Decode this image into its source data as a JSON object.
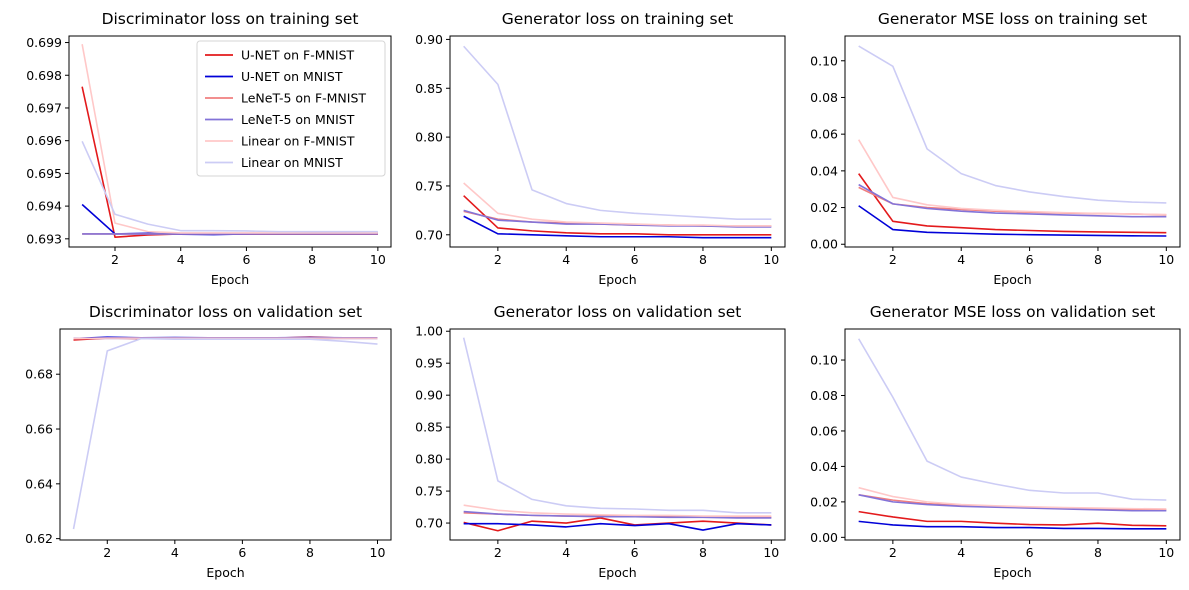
{
  "chart_data": [
    {
      "type": "line",
      "title": "Discriminator loss on training set",
      "xlabel": "Epoch",
      "ylabel": "",
      "xlim": [
        0.6,
        10.4
      ],
      "ylim": [
        0.69275,
        0.6992
      ],
      "xticks": [
        2,
        4,
        6,
        8,
        10
      ],
      "yticks": [
        0.693,
        0.694,
        0.695,
        0.696,
        0.697,
        0.698,
        0.699
      ],
      "yfmt": 3,
      "legend": "top-right",
      "x": [
        1,
        2,
        3,
        4,
        5,
        6,
        7,
        8,
        9,
        10
      ],
      "series": [
        {
          "name": "U-NET on F-MNIST",
          "color": "#e31a1c",
          "values": [
            0.69765,
            0.69305,
            0.69312,
            0.69315,
            0.69314,
            0.69314,
            0.69314,
            0.69314,
            0.69314,
            0.69314
          ]
        },
        {
          "name": "U-NET on MNIST",
          "color": "#0000d8",
          "values": [
            0.69405,
            0.69315,
            0.69317,
            0.69314,
            0.69313,
            0.69315,
            0.69316,
            0.69318,
            0.69318,
            0.69317
          ]
        },
        {
          "name": "LeNeT-5 on F-MNIST",
          "color": "#f07f7f",
          "values": [
            0.69315,
            0.69315,
            0.69315,
            0.69315,
            0.69315,
            0.69315,
            0.69315,
            0.69315,
            0.69315,
            0.69315
          ]
        },
        {
          "name": "LeNeT-5 on MNIST",
          "color": "#8373d8",
          "values": [
            0.69315,
            0.69315,
            0.69315,
            0.69315,
            0.69315,
            0.69315,
            0.69315,
            0.69315,
            0.69315,
            0.69315
          ]
        },
        {
          "name": "Linear on F-MNIST",
          "color": "#ffc8c8",
          "values": [
            0.69895,
            0.69348,
            0.69322,
            0.69318,
            0.69318,
            0.69318,
            0.69318,
            0.69318,
            0.69318,
            0.69318
          ]
        },
        {
          "name": "Linear on MNIST",
          "color": "#ccccf5",
          "values": [
            0.69598,
            0.69375,
            0.69345,
            0.69325,
            0.69325,
            0.69324,
            0.69322,
            0.69322,
            0.69322,
            0.69322
          ]
        }
      ]
    },
    {
      "type": "line",
      "title": "Generator loss on training set",
      "xlabel": "Epoch",
      "ylabel": "",
      "xlim": [
        0.6,
        10.4
      ],
      "ylim": [
        0.6875,
        0.9035
      ],
      "xticks": [
        2,
        4,
        6,
        8,
        10
      ],
      "yticks": [
        0.7,
        0.75,
        0.8,
        0.85,
        0.9
      ],
      "yfmt": 2,
      "x": [
        1,
        2,
        3,
        4,
        5,
        6,
        7,
        8,
        9,
        10
      ],
      "series": [
        {
          "name": "U-NET on F-MNIST",
          "color": "#e31a1c",
          "values": [
            0.74,
            0.707,
            0.704,
            0.702,
            0.701,
            0.701,
            0.7,
            0.7,
            0.7,
            0.7
          ]
        },
        {
          "name": "U-NET on MNIST",
          "color": "#0000d8",
          "values": [
            0.719,
            0.701,
            0.7,
            0.699,
            0.698,
            0.698,
            0.698,
            0.697,
            0.697,
            0.697
          ]
        },
        {
          "name": "LeNeT-5 on F-MNIST",
          "color": "#f07f7f",
          "values": [
            0.724,
            0.716,
            0.713,
            0.712,
            0.711,
            0.71,
            0.71,
            0.709,
            0.709,
            0.709
          ]
        },
        {
          "name": "LeNeT-5 on MNIST",
          "color": "#8373d8",
          "values": [
            0.725,
            0.715,
            0.713,
            0.711,
            0.711,
            0.71,
            0.709,
            0.709,
            0.708,
            0.708
          ]
        },
        {
          "name": "Linear on F-MNIST",
          "color": "#ffc8c8",
          "values": [
            0.753,
            0.722,
            0.716,
            0.713,
            0.712,
            0.711,
            0.71,
            0.71,
            0.709,
            0.709
          ]
        },
        {
          "name": "Linear on MNIST",
          "color": "#ccccf5",
          "values": [
            0.893,
            0.854,
            0.746,
            0.732,
            0.725,
            0.722,
            0.72,
            0.718,
            0.716,
            0.716
          ]
        }
      ]
    },
    {
      "type": "line",
      "title": "Generator MSE loss on training set",
      "xlabel": "Epoch",
      "ylabel": "",
      "xlim": [
        0.6,
        10.4
      ],
      "ylim": [
        -0.0015,
        0.1135
      ],
      "xticks": [
        2,
        4,
        6,
        8,
        10
      ],
      "yticks": [
        0.0,
        0.02,
        0.04,
        0.06,
        0.08,
        0.1
      ],
      "yfmt": 2,
      "x": [
        1,
        2,
        3,
        4,
        5,
        6,
        7,
        8,
        9,
        10
      ],
      "series": [
        {
          "name": "U-NET on F-MNIST",
          "color": "#e31a1c",
          "values": [
            0.0385,
            0.0125,
            0.01,
            0.009,
            0.008,
            0.0075,
            0.007,
            0.0067,
            0.0065,
            0.0063
          ]
        },
        {
          "name": "U-NET on MNIST",
          "color": "#0000d8",
          "values": [
            0.021,
            0.008,
            0.0065,
            0.006,
            0.0055,
            0.0052,
            0.005,
            0.0048,
            0.0046,
            0.0045
          ]
        },
        {
          "name": "LeNeT-5 on F-MNIST",
          "color": "#f07f7f",
          "values": [
            0.031,
            0.022,
            0.02,
            0.019,
            0.018,
            0.0175,
            0.017,
            0.0167,
            0.0165,
            0.016
          ]
        },
        {
          "name": "LeNeT-5 on MNIST",
          "color": "#8373d8",
          "values": [
            0.0325,
            0.022,
            0.0195,
            0.018,
            0.017,
            0.0165,
            0.016,
            0.0155,
            0.015,
            0.015
          ]
        },
        {
          "name": "Linear on F-MNIST",
          "color": "#ffc8c8",
          "values": [
            0.057,
            0.0255,
            0.0215,
            0.0195,
            0.0185,
            0.0178,
            0.0172,
            0.0168,
            0.0165,
            0.0162
          ]
        },
        {
          "name": "Linear on MNIST",
          "color": "#ccccf5",
          "values": [
            0.108,
            0.097,
            0.052,
            0.0385,
            0.032,
            0.0285,
            0.026,
            0.024,
            0.023,
            0.0225
          ]
        }
      ]
    },
    {
      "type": "line",
      "title": "Discriminator loss on validation set",
      "xlabel": "Epoch",
      "ylabel": "",
      "xlim": [
        0.6,
        10.4
      ],
      "ylim": [
        0.6195,
        0.6965
      ],
      "xticks": [
        2,
        4,
        6,
        8,
        10
      ],
      "yticks": [
        0.62,
        0.64,
        0.66,
        0.68
      ],
      "yfmt": 2,
      "x": [
        1,
        2,
        3,
        4,
        5,
        6,
        7,
        8,
        9,
        10
      ],
      "series": [
        {
          "name": "U-NET on F-MNIST",
          "color": "#e31a1c",
          "values": [
            0.6925,
            0.6932,
            0.693,
            0.6932,
            0.6931,
            0.6931,
            0.6932,
            0.6935,
            0.6932,
            0.6932
          ]
        },
        {
          "name": "U-NET on MNIST",
          "color": "#0000d8",
          "values": [
            0.693,
            0.6935,
            0.6933,
            0.6934,
            0.6933,
            0.6933,
            0.6933,
            0.6934,
            0.6933,
            0.6933
          ]
        },
        {
          "name": "LeNeT-5 on F-MNIST",
          "color": "#f07f7f",
          "values": [
            0.6931,
            0.6931,
            0.6931,
            0.6931,
            0.6931,
            0.6931,
            0.6931,
            0.6931,
            0.6931,
            0.6931
          ]
        },
        {
          "name": "LeNeT-5 on MNIST",
          "color": "#8373d8",
          "values": [
            0.6931,
            0.6931,
            0.6931,
            0.6931,
            0.6931,
            0.6931,
            0.6931,
            0.6931,
            0.6931,
            0.6931
          ]
        },
        {
          "name": "Linear on F-MNIST",
          "color": "#ffc8c8",
          "values": [
            0.693,
            0.6932,
            0.6932,
            0.6932,
            0.6932,
            0.6932,
            0.6932,
            0.6932,
            0.6932,
            0.6932
          ]
        },
        {
          "name": "Linear on MNIST",
          "color": "#ccccf5",
          "values": [
            0.6235,
            0.6885,
            0.693,
            0.6928,
            0.6928,
            0.6928,
            0.6928,
            0.6928,
            0.692,
            0.691
          ]
        }
      ]
    },
    {
      "type": "line",
      "title": "Generator loss on validation set",
      "xlabel": "Epoch",
      "ylabel": "",
      "xlim": [
        0.6,
        10.4
      ],
      "ylim": [
        0.6735,
        1.0035
      ],
      "xticks": [
        2,
        4,
        6,
        8,
        10
      ],
      "yticks": [
        0.7,
        0.75,
        0.8,
        0.85,
        0.9,
        0.95,
        1.0
      ],
      "yfmt": 2,
      "x": [
        1,
        2,
        3,
        4,
        5,
        6,
        7,
        8,
        9,
        10
      ],
      "series": [
        {
          "name": "U-NET on F-MNIST",
          "color": "#e31a1c",
          "values": [
            0.701,
            0.688,
            0.703,
            0.7,
            0.708,
            0.697,
            0.7,
            0.703,
            0.7,
            0.697
          ]
        },
        {
          "name": "U-NET on MNIST",
          "color": "#0000d8",
          "values": [
            0.699,
            0.699,
            0.697,
            0.694,
            0.699,
            0.696,
            0.699,
            0.689,
            0.699,
            0.697
          ]
        },
        {
          "name": "LeNeT-5 on F-MNIST",
          "color": "#f07f7f",
          "values": [
            0.716,
            0.714,
            0.712,
            0.711,
            0.711,
            0.71,
            0.71,
            0.71,
            0.709,
            0.709
          ]
        },
        {
          "name": "LeNeT-5 on MNIST",
          "color": "#8373d8",
          "values": [
            0.718,
            0.714,
            0.712,
            0.711,
            0.71,
            0.71,
            0.709,
            0.709,
            0.708,
            0.708
          ]
        },
        {
          "name": "Linear on F-MNIST",
          "color": "#ffc8c8",
          "values": [
            0.728,
            0.72,
            0.716,
            0.714,
            0.713,
            0.712,
            0.712,
            0.711,
            0.711,
            0.711
          ]
        },
        {
          "name": "Linear on MNIST",
          "color": "#ccccf5",
          "values": [
            0.99,
            0.766,
            0.737,
            0.727,
            0.723,
            0.722,
            0.72,
            0.72,
            0.716,
            0.716
          ]
        }
      ]
    },
    {
      "type": "line",
      "title": "Generator MSE loss on validation set",
      "xlabel": "Epoch",
      "ylabel": "",
      "xlim": [
        0.6,
        10.4
      ],
      "ylim": [
        -0.0015,
        0.1175
      ],
      "xticks": [
        2,
        4,
        6,
        8,
        10
      ],
      "yticks": [
        0.0,
        0.02,
        0.04,
        0.06,
        0.08,
        0.1
      ],
      "yfmt": 2,
      "x": [
        1,
        2,
        3,
        4,
        5,
        6,
        7,
        8,
        9,
        10
      ],
      "series": [
        {
          "name": "U-NET on F-MNIST",
          "color": "#e31a1c",
          "values": [
            0.0145,
            0.0115,
            0.009,
            0.009,
            0.008,
            0.0072,
            0.007,
            0.008,
            0.0068,
            0.0065
          ]
        },
        {
          "name": "U-NET on MNIST",
          "color": "#0000d8",
          "values": [
            0.009,
            0.007,
            0.006,
            0.006,
            0.0055,
            0.0055,
            0.005,
            0.005,
            0.0048,
            0.0048
          ]
        },
        {
          "name": "LeNeT-5 on F-MNIST",
          "color": "#f07f7f",
          "values": [
            0.024,
            0.021,
            0.019,
            0.018,
            0.0175,
            0.017,
            0.0165,
            0.016,
            0.0158,
            0.0155
          ]
        },
        {
          "name": "LeNeT-5 on MNIST",
          "color": "#8373d8",
          "values": [
            0.024,
            0.02,
            0.0185,
            0.0175,
            0.017,
            0.0165,
            0.016,
            0.0155,
            0.015,
            0.015
          ]
        },
        {
          "name": "Linear on F-MNIST",
          "color": "#ffc8c8",
          "values": [
            0.028,
            0.023,
            0.02,
            0.0185,
            0.0178,
            0.0172,
            0.0168,
            0.0165,
            0.0162,
            0.016
          ]
        },
        {
          "name": "Linear on MNIST",
          "color": "#ccccf5",
          "values": [
            0.112,
            0.079,
            0.043,
            0.034,
            0.03,
            0.0265,
            0.025,
            0.025,
            0.0215,
            0.021
          ]
        }
      ]
    }
  ]
}
